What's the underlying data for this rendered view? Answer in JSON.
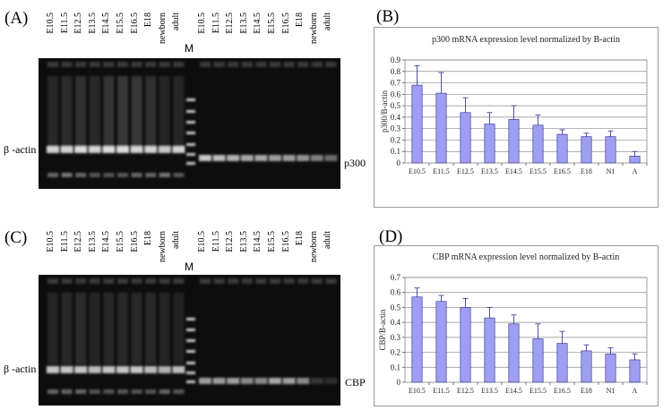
{
  "panels": {
    "A": "(A)",
    "B": "(B)",
    "C": "(C)",
    "D": "(D)"
  },
  "gel_A": {
    "lanes_left": [
      "E10.5",
      "E11.5",
      "E12.5",
      "E13.5",
      "E14.5",
      "E15.5",
      "E16.5",
      "E18",
      "newborn",
      "adult"
    ],
    "marker": "M",
    "lanes_right": [
      "E10.5",
      "E11.5",
      "E12.5",
      "E13.5",
      "E14.5",
      "E15.5",
      "E16.5",
      "E18",
      "newborn",
      "adult"
    ],
    "left_label": "β -actin",
    "right_label": "p300"
  },
  "gel_C": {
    "lanes_left": [
      "E10.5",
      "E11.5",
      "E12.5",
      "E13.5",
      "E14.5",
      "E15.5",
      "E16.5",
      "E18",
      "newborn",
      "adult"
    ],
    "marker": "M",
    "lanes_right": [
      "E10.5",
      "E11.5",
      "E12.5",
      "E13.5",
      "E14.5",
      "E15.5",
      "E16.5",
      "E18",
      "newborn",
      "adult"
    ],
    "left_label": "β -actin",
    "right_label": "CBP"
  },
  "chart_data": [
    {
      "type": "bar",
      "title": "p300 mRNA expression level normalized by B-actin",
      "ylabel": "p300/B-actin",
      "xlabel": "",
      "categories": [
        "E10.5",
        "E11.5",
        "E12.5",
        "E13.5",
        "E14.5",
        "E15.5",
        "E16.5",
        "E18",
        "N1",
        "A"
      ],
      "values": [
        0.68,
        0.61,
        0.44,
        0.34,
        0.38,
        0.33,
        0.25,
        0.23,
        0.23,
        0.06
      ],
      "errors": [
        0.17,
        0.18,
        0.13,
        0.1,
        0.12,
        0.09,
        0.04,
        0.03,
        0.05,
        0.04
      ],
      "ylim": [
        0,
        0.9
      ],
      "yticks": [
        "0",
        "0.1",
        "0.2",
        "0.3",
        "0.4",
        "0.5",
        "0.6",
        "0.7",
        "0.8",
        "0.9"
      ],
      "grid": true,
      "bar_color": "#9e9ef2"
    },
    {
      "type": "bar",
      "title": "CBP mRNA expression level normalized by B-actin",
      "ylabel": "CBP/B-actin",
      "xlabel": "",
      "categories": [
        "E10.5",
        "E11.5",
        "E12.5",
        "E13.5",
        "E14.5",
        "E15.5",
        "E16.5",
        "E18",
        "N1",
        "A"
      ],
      "values": [
        0.57,
        0.54,
        0.5,
        0.43,
        0.39,
        0.29,
        0.26,
        0.21,
        0.19,
        0.15
      ],
      "errors": [
        0.06,
        0.04,
        0.06,
        0.07,
        0.06,
        0.1,
        0.08,
        0.04,
        0.04,
        0.04
      ],
      "ylim": [
        0,
        0.7
      ],
      "yticks": [
        "0",
        "0.1",
        "0.2",
        "0.3",
        "0.4",
        "0.5",
        "0.6",
        "0.7"
      ],
      "grid": true,
      "bar_color": "#9e9ef2"
    }
  ]
}
